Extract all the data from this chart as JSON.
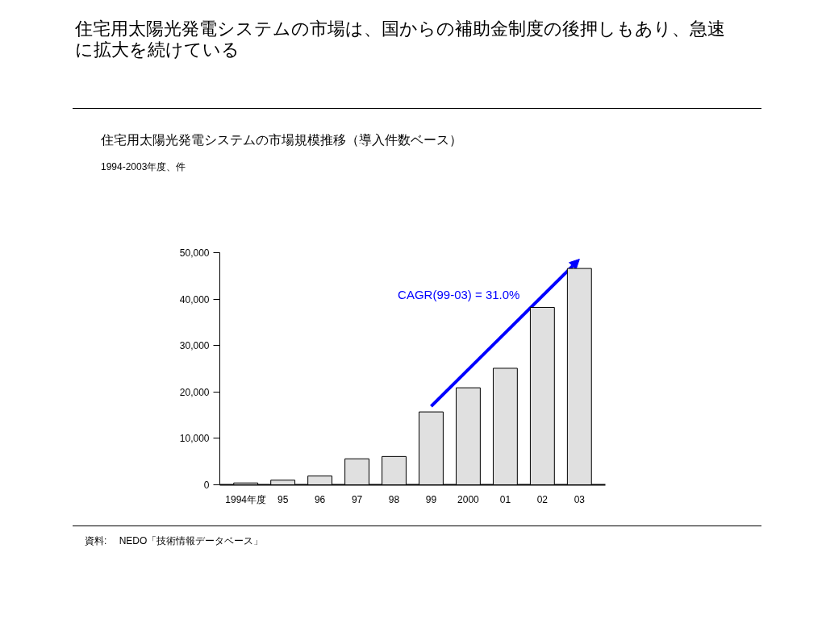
{
  "chart_data": {
    "type": "bar",
    "title": "住宅用太陽光発電システムの市場は、国からの補助金制度の後押しもあり、急速に拡大を続けている",
    "subtitle": "住宅用太陽光発電システムの市場規模推移（導入件数ベース）",
    "categories": [
      "1994年度",
      "95",
      "96",
      "97",
      "98",
      "99",
      "2000",
      "01",
      "02",
      "03"
    ],
    "values": [
      400,
      1000,
      1900,
      5600,
      6100,
      15700,
      20900,
      25100,
      38200,
      46600
    ],
    "color": "#e0e0e0",
    "ylim": [
      0,
      50000
    ],
    "yticks": [
      0,
      {
        "value": 10000,
        "label": "10,000"
      },
      {
        "value": 20000,
        "label": "20,000"
      },
      {
        "value": 30000,
        "label": "30,000"
      },
      {
        "value": 40000,
        "label": "40,000"
      },
      {
        "value": 50000,
        "label": "50,000"
      }
    ],
    "grid": false,
    "annotations": [
      "CAGR(99-03) = 31.0%",
      "1994-2003年度、件",
      "資料:　 NEDO「技術情報データベース」"
    ]
  }
}
